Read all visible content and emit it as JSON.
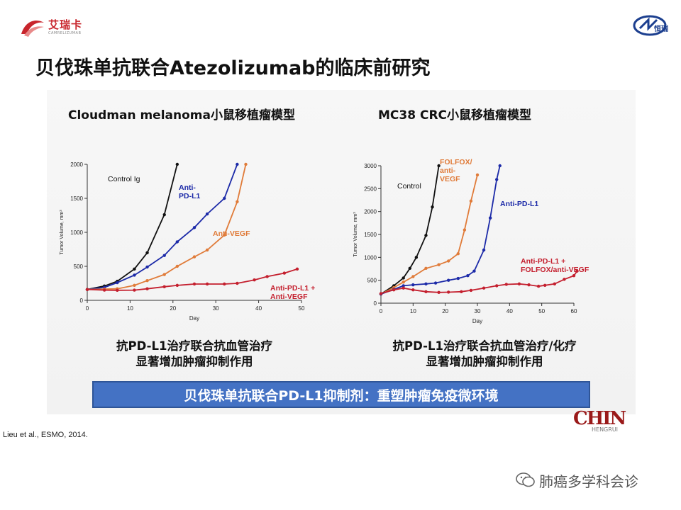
{
  "header": {
    "left_logo_text": "艾瑞卡",
    "left_logo_sub": "CAMRELIZUMAB",
    "right_logo_text": "恒瑞"
  },
  "slide": {
    "title": "贝伐珠单抗联合Atezolizumab的临床前研究",
    "banner": "贝伐珠单抗联合PD-L1抑制剂：重塑肿瘤免疫微环境",
    "citation": "Lieu et al., ESMO, 2014.",
    "chin_logo": "CHIN",
    "chin_sub": "HENGRUI",
    "watermark": "肺癌多学科会诊"
  },
  "panels": [
    {
      "title": "Cloudman melanoma小鼠移植瘤模型",
      "caption_line1": "抗PD-L1治疗联合抗血管治疗",
      "caption_line2": "显著增加肿瘤抑制作用"
    },
    {
      "title": "MC38 CRC小鼠移植瘤模型",
      "caption_line1": "抗PD-L1治疗联合抗血管治疗/化疗",
      "caption_line2": "显著增加肿瘤抑制作用"
    }
  ],
  "chart_data": [
    {
      "type": "line",
      "xlabel": "Day",
      "ylabel": "Tumor Volume, mm³",
      "xlim": [
        0,
        50
      ],
      "ylim": [
        0,
        2000
      ],
      "xticks": [
        0,
        10,
        20,
        30,
        40,
        50
      ],
      "yticks": [
        0,
        500,
        1000,
        1500,
        2000
      ],
      "series": [
        {
          "name": "Control Ig",
          "color": "#111111",
          "points": [
            [
              0,
              160
            ],
            [
              4,
              210
            ],
            [
              7,
              280
            ],
            [
              11,
              460
            ],
            [
              14,
              700
            ],
            [
              18,
              1260
            ],
            [
              21,
              2000
            ]
          ]
        },
        {
          "name": "Anti-PD-L1",
          "color": "#1c2aa8",
          "points": [
            [
              0,
              160
            ],
            [
              4,
              190
            ],
            [
              7,
              260
            ],
            [
              11,
              370
            ],
            [
              14,
              490
            ],
            [
              18,
              660
            ],
            [
              21,
              860
            ],
            [
              25,
              1070
            ],
            [
              28,
              1270
            ],
            [
              32,
              1500
            ],
            [
              35,
              2000
            ]
          ]
        },
        {
          "name": "Anti-VEGF",
          "color": "#e07b39",
          "points": [
            [
              0,
              160
            ],
            [
              4,
              165
            ],
            [
              7,
              170
            ],
            [
              11,
              220
            ],
            [
              14,
              290
            ],
            [
              18,
              380
            ],
            [
              21,
              500
            ],
            [
              25,
              640
            ],
            [
              28,
              740
            ],
            [
              32,
              960
            ],
            [
              35,
              1450
            ],
            [
              37,
              2000
            ]
          ]
        },
        {
          "name": "Anti-PD-L1 + Anti-VEGF",
          "color": "#c41f2e",
          "points": [
            [
              0,
              160
            ],
            [
              4,
              150
            ],
            [
              7,
              148
            ],
            [
              11,
              150
            ],
            [
              14,
              170
            ],
            [
              18,
              200
            ],
            [
              21,
              220
            ],
            [
              25,
              240
            ],
            [
              28,
              240
            ],
            [
              32,
              240
            ],
            [
              35,
              250
            ],
            [
              39,
              300
            ],
            [
              42,
              350
            ],
            [
              46,
              400
            ],
            [
              49,
              460
            ]
          ]
        }
      ]
    },
    {
      "type": "line",
      "xlabel": "Day",
      "ylabel": "Tumor Volume, mm³",
      "xlim": [
        0,
        60
      ],
      "ylim": [
        0,
        3000
      ],
      "xticks": [
        0,
        10,
        20,
        30,
        40,
        50,
        60
      ],
      "yticks": [
        0,
        500,
        1000,
        1500,
        2000,
        2500,
        3000
      ],
      "series": [
        {
          "name": "Control",
          "color": "#111111",
          "points": [
            [
              0,
              200
            ],
            [
              4,
              380
            ],
            [
              7,
              550
            ],
            [
              9,
              760
            ],
            [
              11,
              1000
            ],
            [
              14,
              1480
            ],
            [
              16,
              2100
            ],
            [
              18,
              3000
            ]
          ]
        },
        {
          "name": "FOLFOX/anti-VEGF",
          "color": "#e07b39",
          "points": [
            [
              0,
              200
            ],
            [
              4,
              340
            ],
            [
              7,
              460
            ],
            [
              10,
              580
            ],
            [
              14,
              760
            ],
            [
              18,
              840
            ],
            [
              21,
              920
            ],
            [
              24,
              1080
            ],
            [
              26,
              1600
            ],
            [
              28,
              2230
            ],
            [
              30,
              2800
            ]
          ]
        },
        {
          "name": "Anti-PD-L1",
          "color": "#1c2aa8",
          "points": [
            [
              0,
              200
            ],
            [
              4,
              300
            ],
            [
              7,
              380
            ],
            [
              10,
              400
            ],
            [
              14,
              420
            ],
            [
              17,
              440
            ],
            [
              21,
              500
            ],
            [
              24,
              540
            ],
            [
              27,
              600
            ],
            [
              29,
              700
            ],
            [
              32,
              1160
            ],
            [
              34,
              1860
            ],
            [
              36,
              2700
            ],
            [
              37,
              3000
            ]
          ]
        },
        {
          "name": "Anti-PD-L1 + FOLFOX/anti-VEGF",
          "color": "#c41f2e",
          "points": [
            [
              0,
              210
            ],
            [
              4,
              290
            ],
            [
              7,
              330
            ],
            [
              10,
              290
            ],
            [
              14,
              250
            ],
            [
              18,
              235
            ],
            [
              21,
              240
            ],
            [
              25,
              250
            ],
            [
              28,
              280
            ],
            [
              32,
              330
            ],
            [
              36,
              380
            ],
            [
              39,
              410
            ],
            [
              43,
              420
            ],
            [
              46,
              400
            ],
            [
              49,
              370
            ],
            [
              51,
              390
            ],
            [
              54,
              420
            ],
            [
              57,
              520
            ],
            [
              60,
              600
            ],
            [
              61,
              700
            ]
          ]
        }
      ]
    }
  ]
}
